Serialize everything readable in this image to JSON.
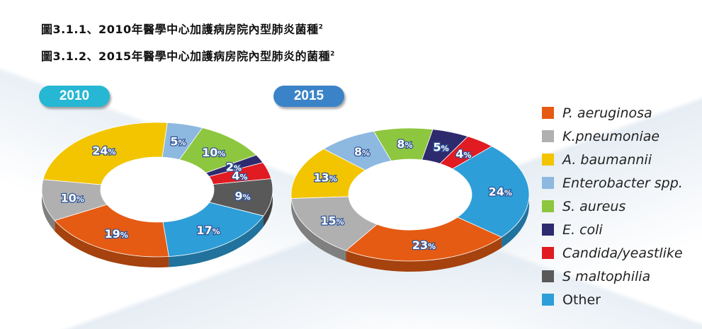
{
  "titles": {
    "line1": "圖3.1.1、2010年醫學中心加護病房院內型肺炎菌種",
    "line1_sup": "2",
    "line2": "圖3.1.2、2015年醫學中心加護病房院內型肺炎的菌種",
    "line2_sup": "2"
  },
  "chart_data": [
    {
      "type": "pie",
      "title": "2010",
      "categories": [
        "P. aeruginosa",
        "K.pneumoniae",
        "A. baumannii",
        "Enterobacter spp.",
        "S. aureus",
        "E. coli",
        "Candida/yeastlike",
        "S maltophilia",
        "Other"
      ],
      "values": [
        19,
        10,
        24,
        5,
        10,
        2,
        4,
        9,
        17
      ],
      "labels": [
        "19%",
        "10%",
        "24%",
        "5%",
        "10%",
        "2%",
        "4%",
        "9%",
        "17%"
      ],
      "donut": true,
      "legend": "right"
    },
    {
      "type": "pie",
      "title": "2015",
      "categories": [
        "P. aeruginosa",
        "K.pneumoniae",
        "A. baumannii",
        "Enterobacter spp.",
        "S. aureus",
        "E. coli",
        "Candida/yeastlike",
        "S maltophilia",
        "Other"
      ],
      "values": [
        23,
        15,
        13,
        8,
        8,
        5,
        4,
        0,
        24
      ],
      "labels": [
        "23%",
        "15%",
        "13%",
        "8%",
        "8%",
        "5%",
        "4%",
        "",
        "24%"
      ],
      "donut": true,
      "legend": "right"
    }
  ],
  "legend": [
    {
      "label": "P. aeruginosa",
      "color": "#e55b13"
    },
    {
      "label": "K.pneumoniae",
      "color": "#b0b0b0"
    },
    {
      "label": "A. baumannii",
      "color": "#f2c500"
    },
    {
      "label": "Enterobacter spp.",
      "color": "#8db8e0"
    },
    {
      "label": "S. aureus",
      "color": "#8dc63f"
    },
    {
      "label": "E. coli",
      "color": "#2e2a6e"
    },
    {
      "label": "Candida/yeastlike",
      "color": "#e01b22"
    },
    {
      "label": "S maltophilia",
      "color": "#595959"
    },
    {
      "label": "Other",
      "color": "#2e9ed8"
    }
  ]
}
